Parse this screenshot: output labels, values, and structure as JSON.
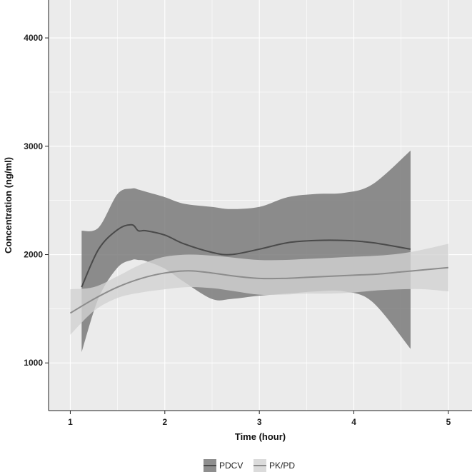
{
  "chart_data": {
    "type": "line",
    "title": "",
    "xlabel": "Time (hour)",
    "ylabel": "Concentration (ng/ml)",
    "xlim": [
      0.77,
      5.25
    ],
    "ylim": [
      560,
      4350
    ],
    "x_ticks": [
      1,
      2,
      3,
      4,
      5
    ],
    "y_ticks": [
      1000,
      2000,
      3000,
      4000
    ],
    "grid": true,
    "legend_position": "bottom",
    "colors": {
      "panel_background": "#ebebeb",
      "grid": "#ffffff",
      "PDCV_line": "#4a4a4a",
      "PDCV_band": "#7a7a7a",
      "PKPD_line": "#8c8c8c",
      "PKPD_band": "#d2d2d2"
    },
    "series": [
      {
        "name": "PDCV",
        "x": [
          1.12,
          1.3,
          1.5,
          1.65,
          1.72,
          1.8,
          2.0,
          2.2,
          2.5,
          2.7,
          3.0,
          3.3,
          3.6,
          3.9,
          4.2,
          4.6
        ],
        "y": [
          1700,
          2050,
          2230,
          2275,
          2220,
          2220,
          2180,
          2100,
          2020,
          2000,
          2050,
          2110,
          2130,
          2130,
          2110,
          2050
        ],
        "lower": [
          1100,
          1600,
          1880,
          1950,
          1950,
          1940,
          1870,
          1750,
          1590,
          1590,
          1620,
          1640,
          1660,
          1660,
          1560,
          1130
        ],
        "upper": [
          2220,
          2250,
          2560,
          2610,
          2600,
          2580,
          2530,
          2470,
          2440,
          2420,
          2440,
          2530,
          2560,
          2570,
          2650,
          2960
        ]
      },
      {
        "name": "PK/PD",
        "x": [
          1.0,
          1.25,
          1.5,
          1.75,
          2.0,
          2.25,
          2.5,
          2.75,
          3.0,
          3.25,
          3.5,
          3.75,
          4.0,
          4.25,
          4.5,
          4.75,
          5.0
        ],
        "y": [
          1460,
          1590,
          1700,
          1780,
          1830,
          1850,
          1830,
          1800,
          1780,
          1780,
          1790,
          1800,
          1810,
          1820,
          1840,
          1860,
          1880
        ],
        "lower": [
          1260,
          1480,
          1600,
          1650,
          1680,
          1700,
          1690,
          1660,
          1630,
          1630,
          1640,
          1640,
          1650,
          1670,
          1680,
          1680,
          1660
        ],
        "upper": [
          1680,
          1700,
          1800,
          1910,
          1980,
          2000,
          1990,
          1970,
          1950,
          1950,
          1960,
          1970,
          1980,
          1990,
          2010,
          2050,
          2100
        ]
      }
    ]
  }
}
